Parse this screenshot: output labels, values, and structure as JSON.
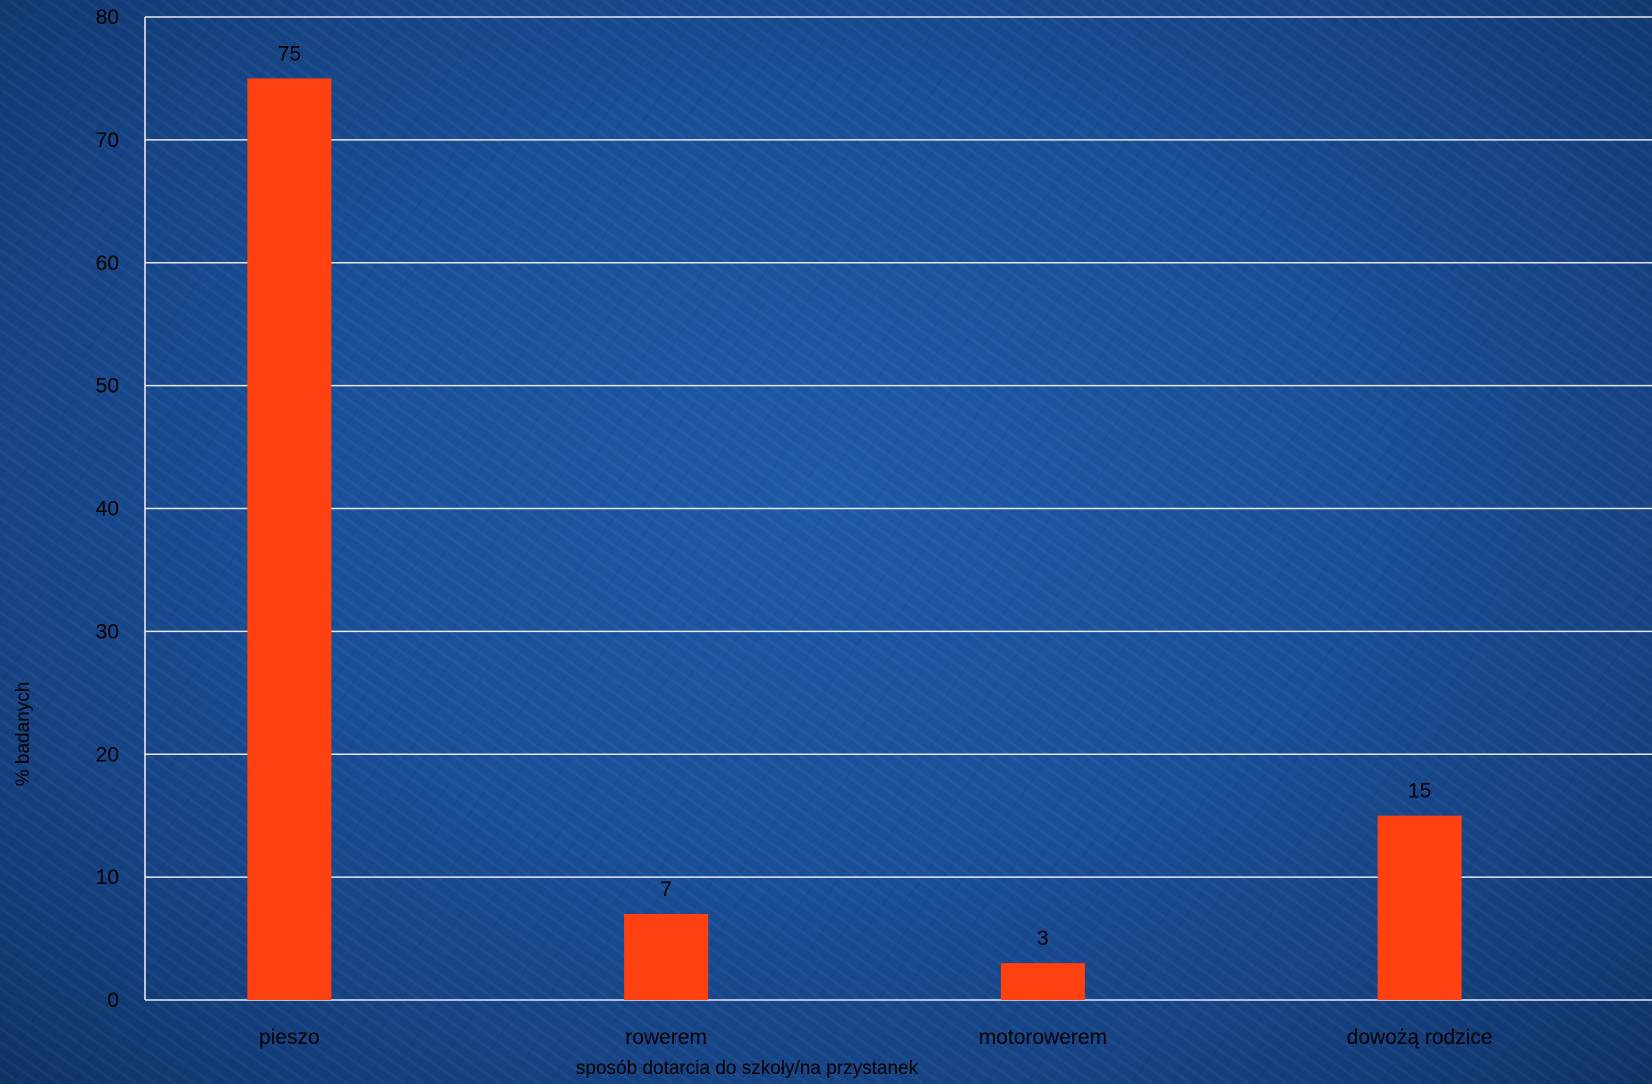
{
  "chart_data": {
    "type": "bar",
    "categories": [
      "pieszo",
      "rowerem",
      "motorowerem",
      "dowożą rodzice"
    ],
    "values": [
      75,
      7,
      3,
      15
    ],
    "data_labels": [
      "75",
      "7",
      "3",
      "15"
    ],
    "xlabel": "sposób dotarcia do szkoły/na przystanek",
    "ylabel": "% badanych",
    "ylim": [
      0,
      80
    ],
    "yticks": [
      "0",
      "10",
      "20",
      "30",
      "40",
      "50",
      "60",
      "70",
      "80"
    ],
    "grid": true,
    "legend": "none",
    "colors": {
      "bar": "#ff4010",
      "grid": "#e6e6ee",
      "text": "#000000"
    }
  }
}
